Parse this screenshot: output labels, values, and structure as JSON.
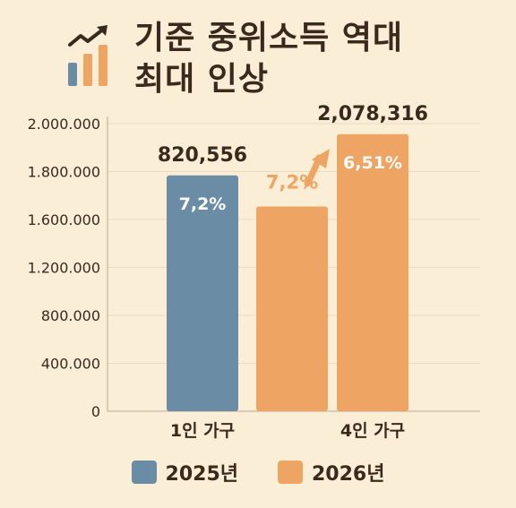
{
  "title": {
    "line1": "기준 중위소득 역대",
    "line2": "최대 인상"
  },
  "icons": {
    "title_icon": "trend-up-chart-icon",
    "arrow_icon": "curved-arrow-up-icon"
  },
  "colors": {
    "background": "#fbeed6",
    "year_2025": "#6a8ca5",
    "year_2026": "#eea463",
    "text": "#3a2a1e",
    "grid": "#e8dcc6"
  },
  "legend": [
    {
      "label": "2025년",
      "color": "#6a8ca5"
    },
    {
      "label": "2026년",
      "color": "#eea463"
    }
  ],
  "chart_data": {
    "type": "bar",
    "y_tick_labels": [
      "0",
      "400.000",
      "800.000",
      "1.200.000",
      "1.600.000",
      "1.800.000",
      "2.000.000"
    ],
    "category_labels": [
      "1인 가구",
      "4인 가구"
    ],
    "bars": [
      {
        "series": "2025년",
        "value_label": "820,556",
        "pct_label": "7,2%",
        "level": 4,
        "level_offset": 0.92
      },
      {
        "series": "2026년",
        "value_label": "",
        "pct_label": "7,2%",
        "level": 4,
        "level_offset": 0.27
      },
      {
        "series": "2026년",
        "value_label": "2,078,316",
        "pct_label": "6,51%",
        "level": 5,
        "level_offset": 0.78
      }
    ],
    "grid": true,
    "legend_position": "bottom"
  }
}
